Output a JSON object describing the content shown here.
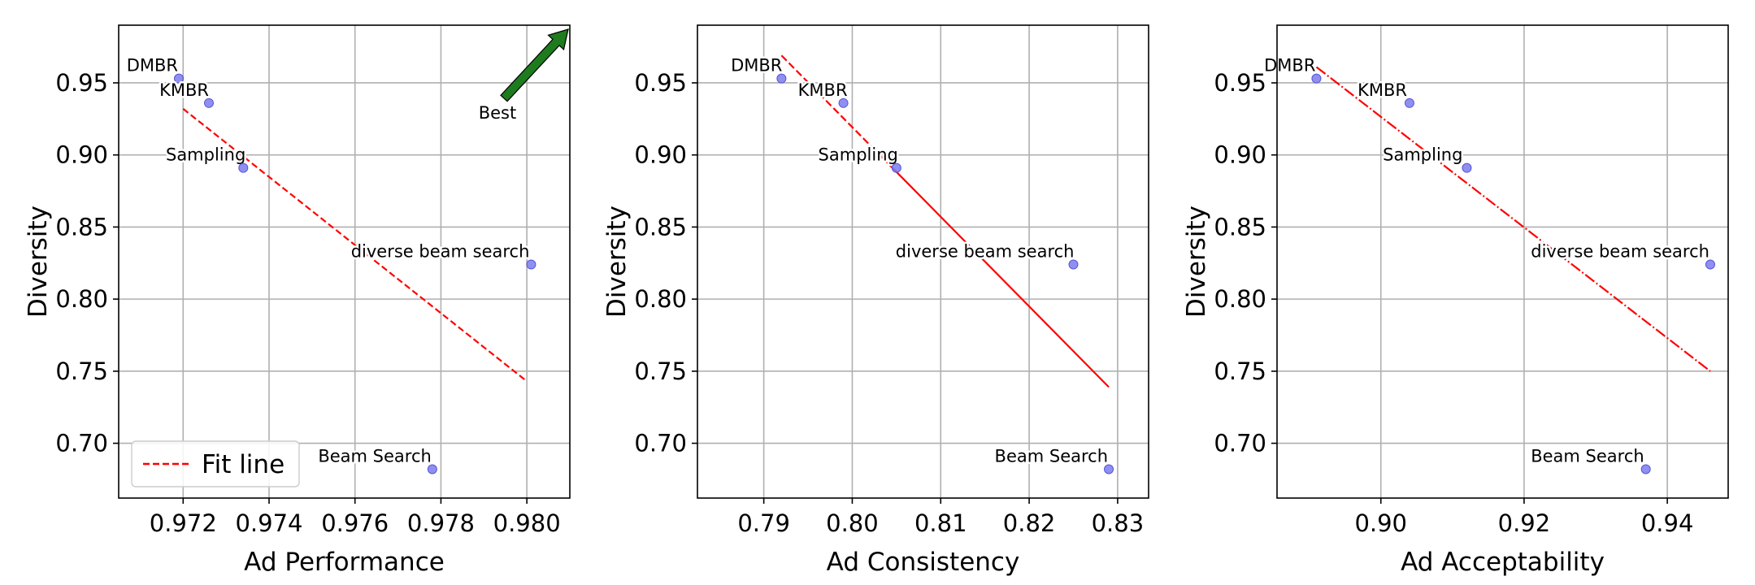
{
  "chart_data": [
    {
      "type": "scatter",
      "xlabel": "Ad Performance",
      "ylabel": "Diversity",
      "xlim": [
        0.9705,
        0.981
      ],
      "ylim": [
        0.662,
        0.99
      ],
      "xticks": [
        0.972,
        0.974,
        0.976,
        0.978,
        0.98
      ],
      "xtick_labels": [
        "0.972",
        "0.974",
        "0.976",
        "0.978",
        "0.980"
      ],
      "yticks": [
        0.7,
        0.75,
        0.8,
        0.85,
        0.9,
        0.95
      ],
      "ytick_labels": [
        "0.70",
        "0.75",
        "0.80",
        "0.85",
        "0.90",
        "0.95"
      ],
      "grid": true,
      "points": [
        {
          "label": "DMBR",
          "x": 0.9719,
          "y": 0.953
        },
        {
          "label": "KMBR",
          "x": 0.9726,
          "y": 0.936
        },
        {
          "label": "Sampling",
          "x": 0.9734,
          "y": 0.891
        },
        {
          "label": "diverse beam search",
          "x": 0.9801,
          "y": 0.824
        },
        {
          "label": "Beam Search",
          "x": 0.9778,
          "y": 0.682
        }
      ],
      "fit_line": {
        "x": [
          0.972,
          0.98
        ],
        "y": [
          0.932,
          0.743
        ],
        "style": "dashed"
      },
      "legend": {
        "entries": [
          "Fit line"
        ],
        "placement": "lower-left"
      },
      "annotation": {
        "text": "Best",
        "type": "arrow",
        "color": "#1e7b1e"
      }
    },
    {
      "type": "scatter",
      "xlabel": "Ad Consistency",
      "ylabel": "Diversity",
      "xlim": [
        0.7825,
        0.8335
      ],
      "ylim": [
        0.662,
        0.99
      ],
      "xticks": [
        0.79,
        0.8,
        0.81,
        0.82,
        0.83
      ],
      "xtick_labels": [
        "0.79",
        "0.80",
        "0.81",
        "0.82",
        "0.83"
      ],
      "yticks": [
        0.7,
        0.75,
        0.8,
        0.85,
        0.9,
        0.95
      ],
      "ytick_labels": [
        "0.70",
        "0.75",
        "0.80",
        "0.85",
        "0.90",
        "0.95"
      ],
      "grid": true,
      "points": [
        {
          "label": "DMBR",
          "x": 0.792,
          "y": 0.953
        },
        {
          "label": "KMBR",
          "x": 0.799,
          "y": 0.936
        },
        {
          "label": "Sampling",
          "x": 0.805,
          "y": 0.891
        },
        {
          "label": "diverse beam search",
          "x": 0.825,
          "y": 0.824
        },
        {
          "label": "Beam Search",
          "x": 0.829,
          "y": 0.682
        }
      ],
      "fit_line": {
        "x": [
          0.792,
          0.829
        ],
        "y": [
          0.969,
          0.739
        ],
        "style": "dash-to-solid"
      }
    },
    {
      "type": "scatter",
      "xlabel": "Ad Acceptability",
      "ylabel": "Diversity",
      "xlim": [
        0.8855,
        0.9485
      ],
      "ylim": [
        0.662,
        0.99
      ],
      "xticks": [
        0.9,
        0.92,
        0.94
      ],
      "xtick_labels": [
        "0.90",
        "0.92",
        "0.94"
      ],
      "yticks": [
        0.7,
        0.75,
        0.8,
        0.85,
        0.9,
        0.95
      ],
      "ytick_labels": [
        "0.70",
        "0.75",
        "0.80",
        "0.85",
        "0.90",
        "0.95"
      ],
      "grid": true,
      "points": [
        {
          "label": "DMBR",
          "x": 0.891,
          "y": 0.953
        },
        {
          "label": "KMBR",
          "x": 0.904,
          "y": 0.936
        },
        {
          "label": "Sampling",
          "x": 0.912,
          "y": 0.891
        },
        {
          "label": "diverse beam search",
          "x": 0.946,
          "y": 0.824
        },
        {
          "label": "Beam Search",
          "x": 0.937,
          "y": 0.682
        }
      ],
      "fit_line": {
        "x": [
          0.891,
          0.946
        ],
        "y": [
          0.961,
          0.75
        ],
        "style": "dash-dot"
      }
    }
  ],
  "colors": {
    "point": "#7b7bf0",
    "point_edge": "#5555d6",
    "fit_line": "#ff0000",
    "grid": "#b0b0b0",
    "arrow": "#1e7b1e",
    "label_bg": "#ffffff"
  }
}
